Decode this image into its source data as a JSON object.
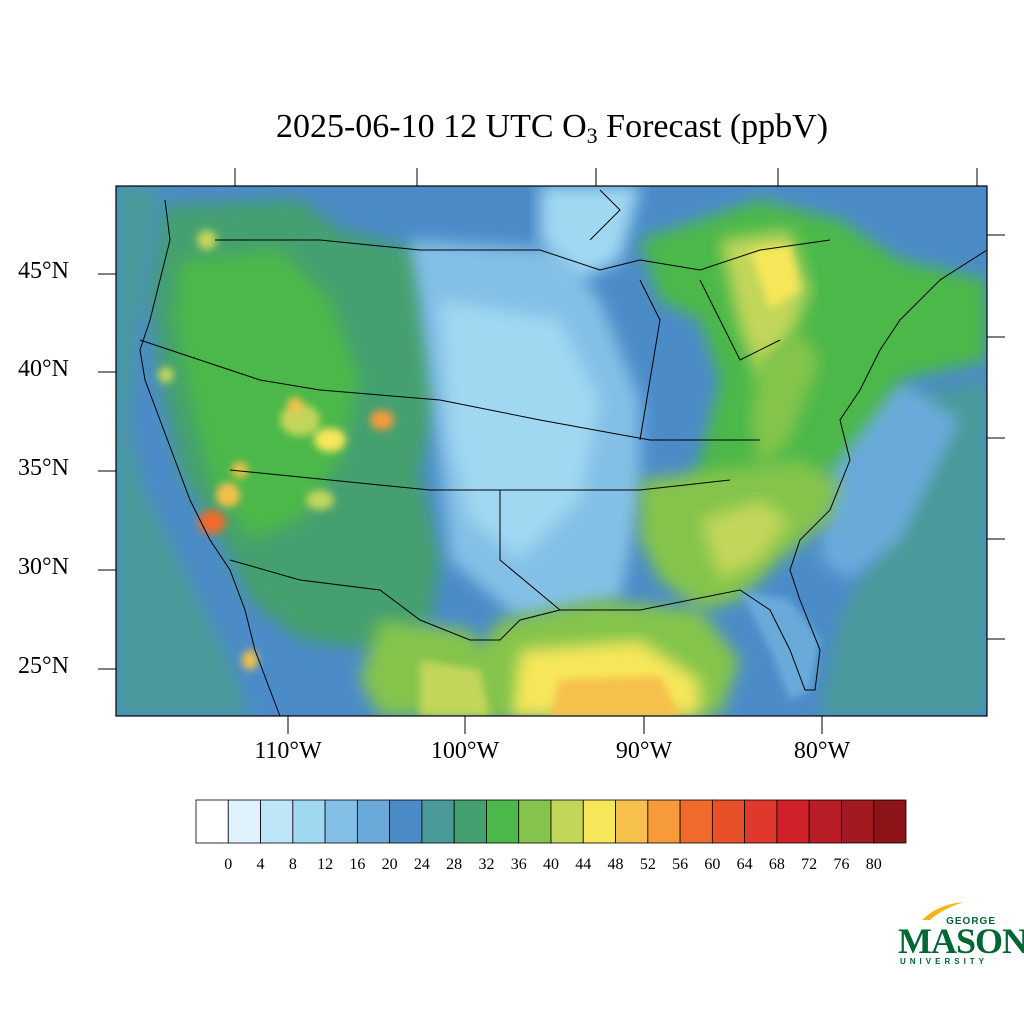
{
  "title": {
    "prefix": "2025-06-10 12 UTC O",
    "subscript": "3",
    "suffix": " Forecast (ppbV)"
  },
  "latitude_labels": [
    "45°N",
    "40°N",
    "35°N",
    "30°N",
    "25°N"
  ],
  "longitude_labels": [
    "110°W",
    "100°W",
    "90°W",
    "80°W"
  ],
  "colorbar": {
    "tick_labels": [
      "0",
      "4",
      "8",
      "12",
      "16",
      "20",
      "24",
      "28",
      "32",
      "36",
      "40",
      "44",
      "48",
      "52",
      "56",
      "60",
      "64",
      "68",
      "72",
      "76",
      "80"
    ],
    "colors": [
      "#ffffff",
      "#dff2fb",
      "#bfe6f6",
      "#a0d8f2",
      "#84c0e6",
      "#6aaadb",
      "#4b8cc8",
      "#4a9a9a",
      "#44a070",
      "#4cb84a",
      "#84c44c",
      "#c2d65a",
      "#f6e65a",
      "#f6c04c",
      "#f69a3a",
      "#f06a2c",
      "#e8502a",
      "#e0382a",
      "#d22028",
      "#b81c24",
      "#a01a20",
      "#8c1418"
    ]
  },
  "logo": {
    "line1": "GEORGE",
    "line2": "MASON",
    "line3": "UNIVERSITY"
  }
}
